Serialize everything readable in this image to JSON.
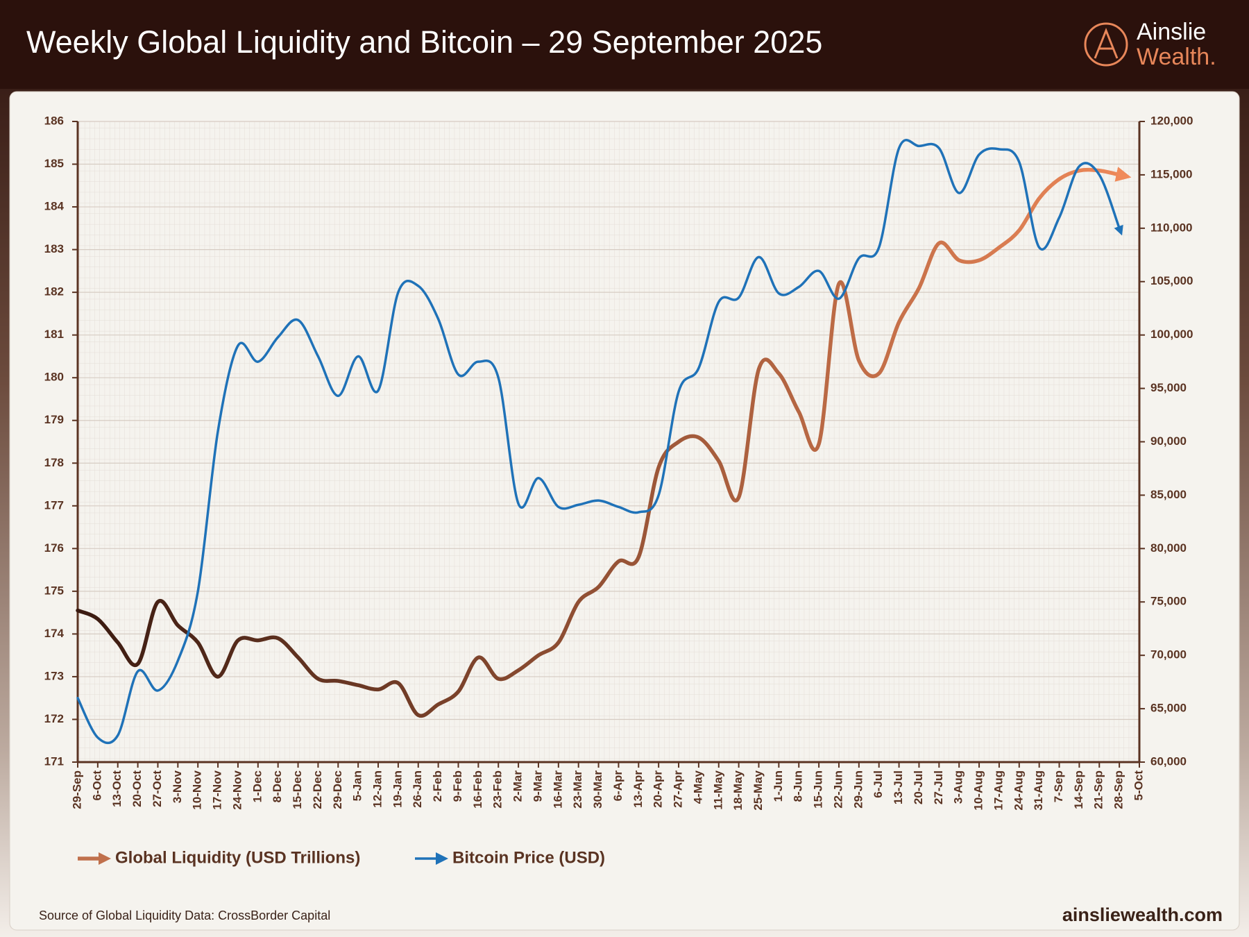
{
  "chart_data": {
    "type": "line",
    "title": "Weekly Global Liquidity and Bitcoin – 29 September 2025",
    "logo_top": "Ainslie",
    "logo_bottom": "Wealth.",
    "source": "Source of Global Liquidity Data: CrossBorder Capital",
    "site": "ainsliewealth.com",
    "categories": [
      "29-Sep",
      "6-Oct",
      "13-Oct",
      "20-Oct",
      "27-Oct",
      "3-Nov",
      "10-Nov",
      "17-Nov",
      "24-Nov",
      "1-Dec",
      "8-Dec",
      "15-Dec",
      "22-Dec",
      "29-Dec",
      "5-Jan",
      "12-Jan",
      "19-Jan",
      "26-Jan",
      "2-Feb",
      "9-Feb",
      "16-Feb",
      "23-Feb",
      "2-Mar",
      "9-Mar",
      "16-Mar",
      "23-Mar",
      "30-Mar",
      "6-Apr",
      "13-Apr",
      "20-Apr",
      "27-Apr",
      "4-May",
      "11-May",
      "18-May",
      "25-May",
      "1-Jun",
      "8-Jun",
      "15-Jun",
      "22-Jun",
      "29-Jun",
      "6-Jul",
      "13-Jul",
      "20-Jul",
      "27-Jul",
      "3-Aug",
      "10-Aug",
      "17-Aug",
      "24-Aug",
      "31-Aug",
      "7-Sep",
      "14-Sep",
      "21-Sep",
      "28-Sep",
      "5-Oct"
    ],
    "series": [
      {
        "name": "Global Liquidity (USD Trillions)",
        "color": "#c0704c",
        "gradient": [
          "#3a1a10",
          "#f08a5a"
        ],
        "values": [
          174.55,
          174.35,
          173.8,
          173.3,
          174.75,
          174.2,
          173.8,
          173.0,
          173.85,
          173.85,
          173.9,
          173.45,
          172.95,
          172.9,
          172.8,
          172.7,
          172.85,
          172.1,
          172.35,
          172.65,
          173.45,
          172.95,
          173.15,
          173.5,
          173.8,
          174.75,
          175.1,
          175.7,
          175.8,
          177.9,
          178.5,
          178.6,
          178.05,
          177.2,
          180.2,
          180.1,
          179.2,
          178.45,
          182.2,
          180.4,
          180.1,
          181.3,
          182.1,
          183.15,
          182.75,
          182.75,
          183.05,
          183.45,
          184.2,
          184.65,
          184.85,
          184.85,
          184.75,
          null
        ]
      },
      {
        "name": "Bitcoin Price (USD)",
        "color": "#1f72b8",
        "axis": "y2",
        "values": [
          66000,
          62300,
          62500,
          68500,
          66700,
          69500,
          76000,
          91000,
          99000,
          97500,
          99800,
          101400,
          98000,
          94300,
          98000,
          94800,
          104000,
          104600,
          101500,
          96300,
          97500,
          96000,
          84200,
          86600,
          83900,
          84100,
          84500,
          83900,
          83400,
          85000,
          94700,
          96900,
          103100,
          103500,
          107300,
          103900,
          104500,
          106000,
          103400,
          107200,
          108200,
          117500,
          117700,
          117500,
          113300,
          116900,
          117400,
          116200,
          108200,
          111000,
          115800,
          115000,
          110000,
          null
        ]
      }
    ],
    "ylim": [
      171,
      186
    ],
    "yticks": [
      171,
      172,
      173,
      174,
      175,
      176,
      177,
      178,
      179,
      180,
      181,
      182,
      183,
      184,
      185,
      186
    ],
    "y2lim": [
      60000,
      120000
    ],
    "y2ticks": [
      {
        "value": 60000,
        "label": "60,000"
      },
      {
        "value": 65000,
        "label": "65,000"
      },
      {
        "value": 70000,
        "label": "70,000"
      },
      {
        "value": 75000,
        "label": "75,000"
      },
      {
        "value": 80000,
        "label": "80,000"
      },
      {
        "value": 85000,
        "label": "85,000"
      },
      {
        "value": 90000,
        "label": "90,000"
      },
      {
        "value": 95000,
        "label": "95,000"
      },
      {
        "value": 100000,
        "label": "100,000"
      },
      {
        "value": 105000,
        "label": "105,000"
      },
      {
        "value": 110000,
        "label": "110,000"
      },
      {
        "value": 115000,
        "label": "115,000"
      },
      {
        "value": 120000,
        "label": "120,000"
      }
    ],
    "grid": true
  }
}
